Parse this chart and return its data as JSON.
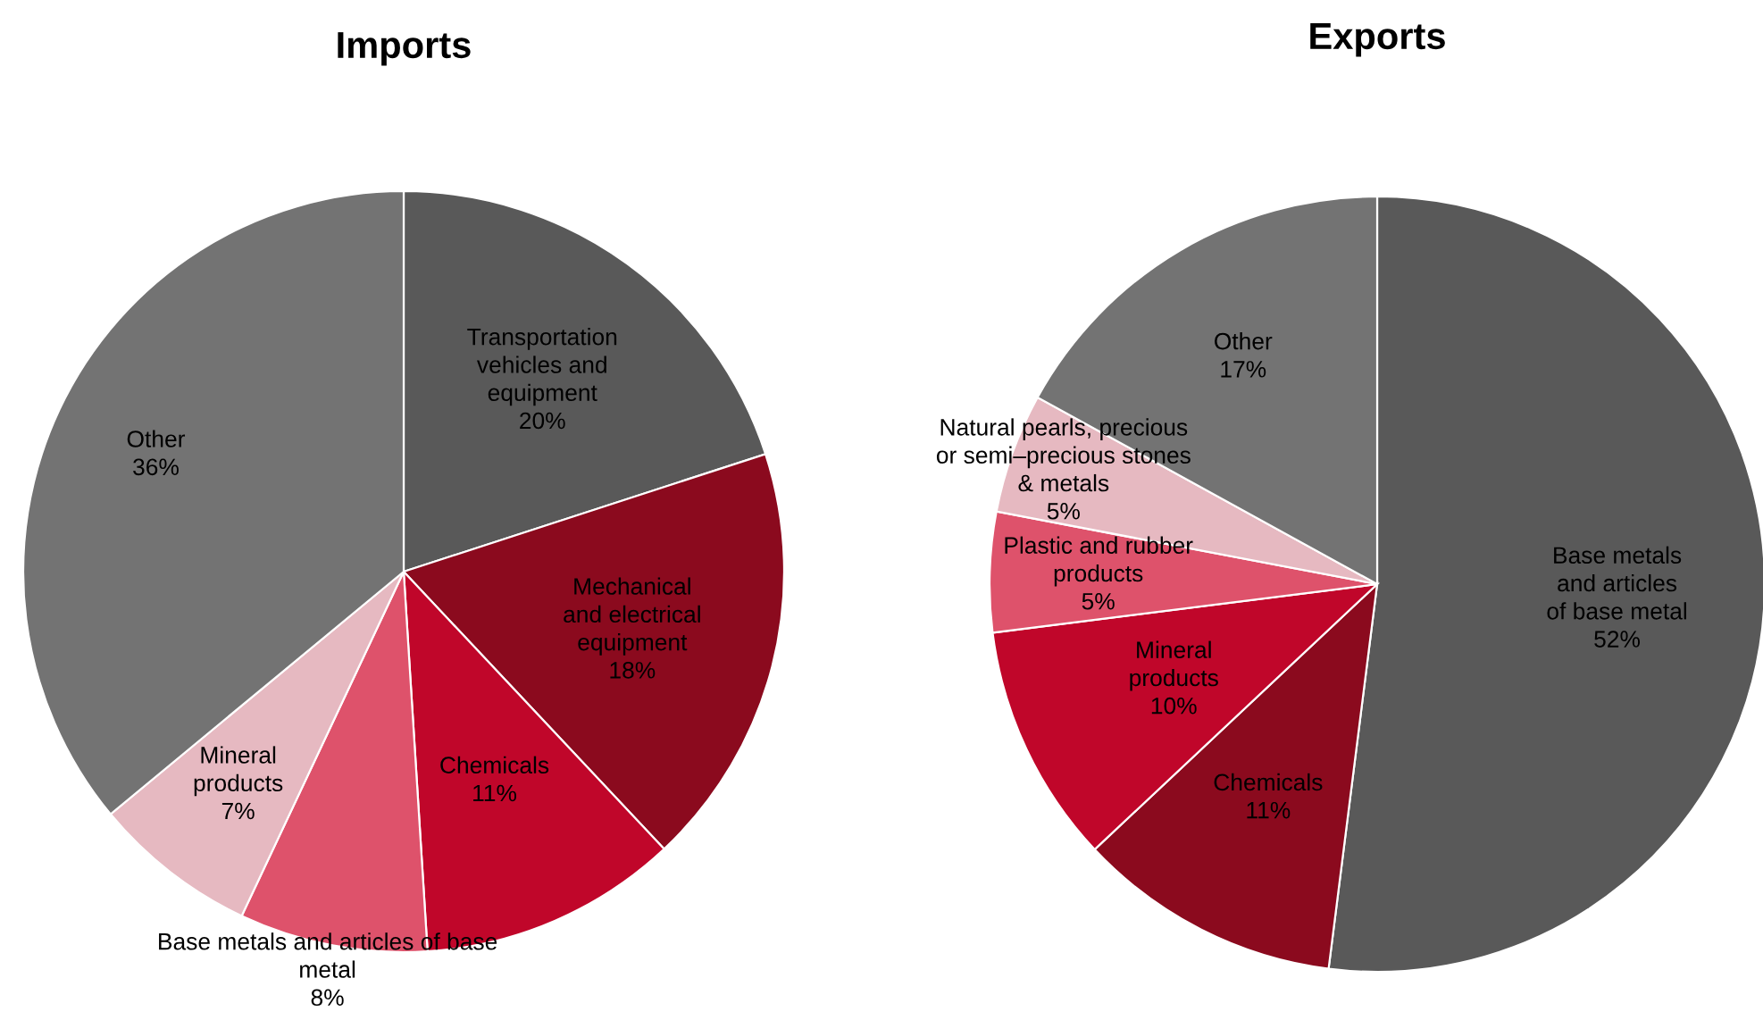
{
  "chart_data": [
    {
      "type": "pie",
      "title": "Imports",
      "categories": [
        "Transportation\nvehicles and\nequipment",
        "Mechanical\nand electrical\nequipment",
        "Chemicals",
        "Base metals and articles of base\nmetal",
        "Mineral\nproducts",
        "Other"
      ],
      "values": [
        20,
        18,
        11,
        8,
        7,
        36
      ],
      "value_labels": [
        "20%",
        "18%",
        "11%",
        "8%",
        "7%",
        "36%"
      ],
      "colors": [
        "#595959",
        "#8b0a1e",
        "#c0062a",
        "#de526b",
        "#e6b9c1",
        "#737373"
      ]
    },
    {
      "type": "pie",
      "title": "Exports",
      "categories": [
        "Base metals\nand articles\nof base metal",
        "Chemicals",
        "Mineral\nproducts",
        "Plastic and rubber\nproducts",
        "Natural pearls, precious\nor semi–precious stones\n& metals",
        "Other"
      ],
      "values": [
        52,
        11,
        10,
        5,
        5,
        17
      ],
      "value_labels": [
        "52%",
        "11%",
        "10%",
        "5%",
        "5%",
        "17%"
      ],
      "colors": [
        "#595959",
        "#8b0a1e",
        "#c0062a",
        "#de526b",
        "#e6b9c1",
        "#737373"
      ]
    }
  ]
}
